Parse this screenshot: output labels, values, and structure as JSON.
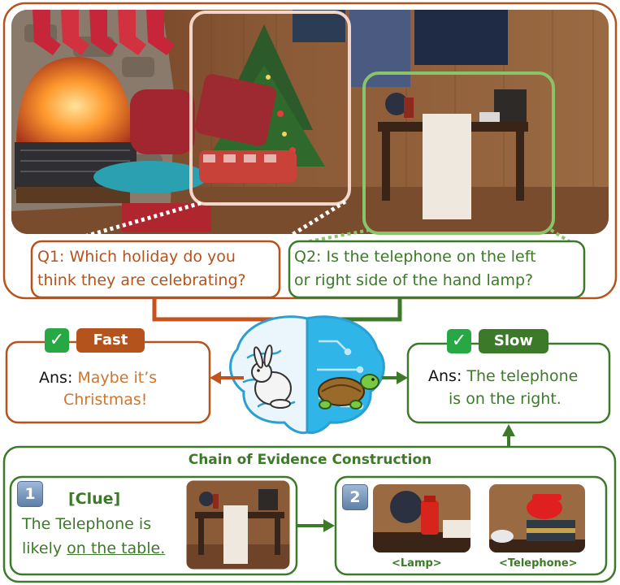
{
  "questions": {
    "q1_line1": "Q1: Which holiday do you",
    "q1_line2": "think they are celebrating?",
    "q2_line1": "Q2: Is the telephone on the left",
    "q2_line2": "or right side of the hand lamp?"
  },
  "fast": {
    "tag": "Fast",
    "ans_key": "Ans:",
    "ans_line1": "Maybe it’s",
    "ans_line2": "Christmas!"
  },
  "slow": {
    "tag": "Slow",
    "ans_key": "Ans:",
    "ans_line1": "The telephone",
    "ans_line2": "is on the right."
  },
  "chain": {
    "title": "Chain of Evidence Construction",
    "step1": {
      "number": "1",
      "clue": "[Clue]",
      "line1": "The Telephone is",
      "line2_prefix": "likely ",
      "line2_underlined": "on the table."
    },
    "step2": {
      "number": "2",
      "lamp_caption": "<Lamp>",
      "telephone_caption": "<Telephone>"
    }
  },
  "icons": {
    "check": "✓",
    "brain": "brain-icon",
    "rabbit": "rabbit-icon",
    "turtle": "turtle-icon"
  },
  "colors": {
    "fast": "#b4531c",
    "slow": "#3c7a2a",
    "fast_text": "#d0762c",
    "check": "#28a745"
  }
}
